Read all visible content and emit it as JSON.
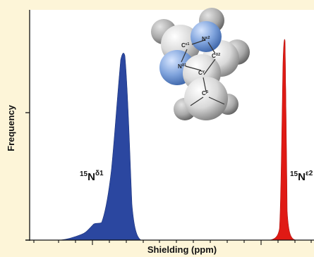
{
  "chart_data": {
    "type": "area",
    "title": "",
    "xlabel": "Shielding (ppm)",
    "ylabel": "Frequency",
    "grid": false,
    "legend": "none",
    "series": [
      {
        "name": "¹⁵Nδ1",
        "color": "#2b47a0"
      },
      {
        "name": "¹⁵Nε2",
        "color": "#e01a14"
      }
    ],
    "peak_labels": [
      {
        "mass": "15",
        "element": "N",
        "sub": "δ1"
      },
      {
        "mass": "15",
        "element": "N",
        "sub": "ε2"
      }
    ],
    "molecule_atoms": [
      {
        "element": "C",
        "sub": "ε1"
      },
      {
        "element": "N",
        "sub": "ε2"
      },
      {
        "element": "N",
        "sub": "δ1"
      },
      {
        "element": "C",
        "sub": "δ2"
      },
      {
        "element": "C",
        "sub": "γ"
      },
      {
        "element": "C",
        "sub": "β"
      }
    ]
  }
}
